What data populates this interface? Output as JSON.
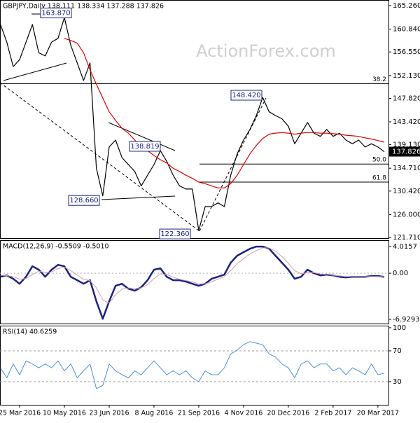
{
  "chart_data": [
    {
      "type": "line",
      "title": "GBPJPY,Daily  138.111 138.334 137.288 137.826",
      "watermark": "ActionForex.com",
      "ylim": [
        121.58,
        166.31
      ],
      "yticks": [
        {
          "value": 165.26,
          "label": "165.260"
        },
        {
          "value": 160.84,
          "label": "160.840"
        },
        {
          "value": 156.55,
          "label": "156.550"
        },
        {
          "value": 152.13,
          "label": "152.130"
        },
        {
          "value": 147.82,
          "label": "147.820"
        },
        {
          "value": 143.42,
          "label": "143.420"
        },
        {
          "value": 139.13,
          "label": "139.130"
        },
        {
          "value": 134.71,
          "label": "134.710"
        },
        {
          "value": 130.42,
          "label": "130.420"
        },
        {
          "value": 126,
          "label": "126.000"
        },
        {
          "value": 121.71,
          "label": "121.710"
        }
      ],
      "series": [
        {
          "color": "#000000",
          "values": [
            161.7,
            158.4,
            153.8,
            155.1,
            158.4,
            161.7,
            156.4,
            155.8,
            158.4,
            159.1,
            163.0,
            157.8,
            154.5,
            151.2,
            154.5,
            134.7,
            129.5,
            138.7,
            140.0,
            136.7,
            135.4,
            134.1,
            131.4,
            133.4,
            135.4,
            138.0,
            136.0,
            133.4,
            131.4,
            130.8,
            130.8,
            123.0,
            127.5,
            127.5,
            128.2,
            127.5,
            133.4,
            137.4,
            140.0,
            142.0,
            144.6,
            148.0,
            145.3,
            144.6,
            144.0,
            142.6,
            139.3,
            141.3,
            143.3,
            141.3,
            140.7,
            142.0,
            140.7,
            141.3,
            140.0,
            139.3,
            140.0,
            138.7,
            139.3,
            138.7,
            137.8
          ]
        },
        {
          "color": "#e00000",
          "values": [
            null,
            null,
            null,
            null,
            null,
            null,
            null,
            null,
            null,
            null,
            159.1,
            158.7,
            158.2,
            156.4,
            153.2,
            150.5,
            147.9,
            145.3,
            143.7,
            142.2,
            141.3,
            140.0,
            138.7,
            138.0,
            137.1,
            136.3,
            135.7,
            134.7,
            134.1,
            133.4,
            132.8,
            132.1,
            131.8,
            131.4,
            131.0,
            131.0,
            131.8,
            133.4,
            135.4,
            137.4,
            139.0,
            140.3,
            141.1,
            141.3,
            141.4,
            141.3,
            141.1,
            141.3,
            141.4,
            141.4,
            141.3,
            141.3,
            141.2,
            141.1,
            140.9,
            140.8,
            140.7,
            140.4,
            140.2,
            139.9,
            139.6
          ]
        }
      ],
      "price_labels": [
        {
          "value": 163.87,
          "label": "163.870"
        },
        {
          "value": 138.819,
          "label": "138.819"
        },
        {
          "value": 128.66,
          "label": "128.660"
        },
        {
          "value": 122.36,
          "label": "122.360"
        },
        {
          "value": 148.42,
          "label": "148.420"
        }
      ],
      "last": {
        "value": 137.826,
        "label": "137.826"
      },
      "fib_levels": [
        {
          "name": "38.2",
          "price": 150.6
        },
        {
          "name": "50.0",
          "price": 135.5
        },
        {
          "name": "61.8",
          "price": 132.1
        }
      ]
    },
    {
      "type": "line",
      "title": "MACD(12,26,9) -0.5509 -0.5010",
      "ylim": [
        -7.56,
        4.96
      ],
      "yticks": [
        4.0157,
        {
          "value": 0,
          "label": "0.00"
        },
        -6.9293
      ],
      "series": [
        {
          "color": "#1a237e",
          "width": 2.5,
          "values": [
            -0.53,
            -0.32,
            -0.84,
            -1.58,
            -0.53,
            1.05,
            0.53,
            -0.53,
            0.53,
            1.26,
            1.05,
            -0.53,
            -1.05,
            -1.58,
            -1.05,
            -4.21,
            -6.84,
            -4.21,
            -1.89,
            -1.58,
            -2.32,
            -2.63,
            -2.11,
            -1.05,
            0.53,
            0.74,
            -0.53,
            -1.05,
            -1.05,
            -1.26,
            -1.58,
            -1.89,
            -1.58,
            -0.84,
            -0.53,
            -0.21,
            1.58,
            2.63,
            3.16,
            3.68,
            4.0,
            4.0,
            3.68,
            2.63,
            1.58,
            0.53,
            -0.84,
            -0.53,
            0.53,
            0.0,
            -0.32,
            -0.21,
            -0.32,
            -0.53,
            -0.63,
            -0.53,
            -0.53,
            -0.53,
            -0.42,
            -0.42,
            -0.55
          ]
        },
        {
          "color": "#d4a0a8",
          "width": 1,
          "values": [
            -0.3,
            -0.35,
            -0.5,
            -0.9,
            -0.8,
            -0.2,
            0.3,
            0.1,
            0.2,
            0.7,
            0.9,
            0.4,
            -0.3,
            -0.9,
            -1.1,
            -2.2,
            -4.0,
            -4.5,
            -3.2,
            -2.4,
            -2.2,
            -2.3,
            -2.2,
            -1.7,
            -0.8,
            -0.1,
            -0.2,
            -0.6,
            -0.9,
            -1.1,
            -1.3,
            -1.6,
            -1.6,
            -1.3,
            -0.9,
            -0.5,
            0.4,
            1.4,
            2.2,
            2.9,
            3.4,
            3.8,
            3.8,
            3.3,
            2.5,
            1.5,
            0.4,
            -0.1,
            0.1,
            0.1,
            -0.1,
            -0.2,
            -0.3,
            -0.4,
            -0.5,
            -0.5,
            -0.5,
            -0.5,
            -0.5,
            -0.5,
            -0.5
          ]
        }
      ]
    },
    {
      "type": "line",
      "title": "RSI(14) 40.6259",
      "ylim": [
        0,
        102.7
      ],
      "yticks": [
        100,
        70,
        30
      ],
      "series": [
        {
          "color": "#4a90d9",
          "width": 1,
          "values": [
            48,
            35,
            53,
            39,
            57,
            53,
            48,
            53,
            48,
            57,
            44,
            53,
            35,
            44,
            53,
            21,
            25,
            53,
            44,
            39,
            35,
            44,
            39,
            48,
            57,
            48,
            39,
            44,
            39,
            44,
            35,
            30,
            44,
            39,
            39,
            48,
            66,
            71,
            78,
            82,
            80,
            78,
            66,
            62,
            53,
            48,
            35,
            53,
            57,
            48,
            53,
            53,
            44,
            48,
            39,
            48,
            44,
            39,
            53,
            39,
            41
          ]
        }
      ],
      "categories": [
        null,
        null,
        null,
        "25 Mar 2016",
        null,
        null,
        null,
        null,
        null,
        null,
        "10 May 2016",
        null,
        null,
        null,
        null,
        null,
        null,
        "23 Jun 2016",
        null,
        null,
        null,
        null,
        null,
        null,
        "8 Aug 2016",
        null,
        null,
        null,
        null,
        null,
        null,
        "21 Sep 2016",
        null,
        null,
        null,
        null,
        null,
        null,
        "4 Nov 2016",
        null,
        null,
        null,
        null,
        null,
        null,
        "20 Dec 2016",
        null,
        null,
        null,
        null,
        null,
        null,
        "2 Feb 2017",
        null,
        null,
        null,
        null,
        null,
        null,
        "20 Mar 2017",
        null
      ]
    }
  ]
}
